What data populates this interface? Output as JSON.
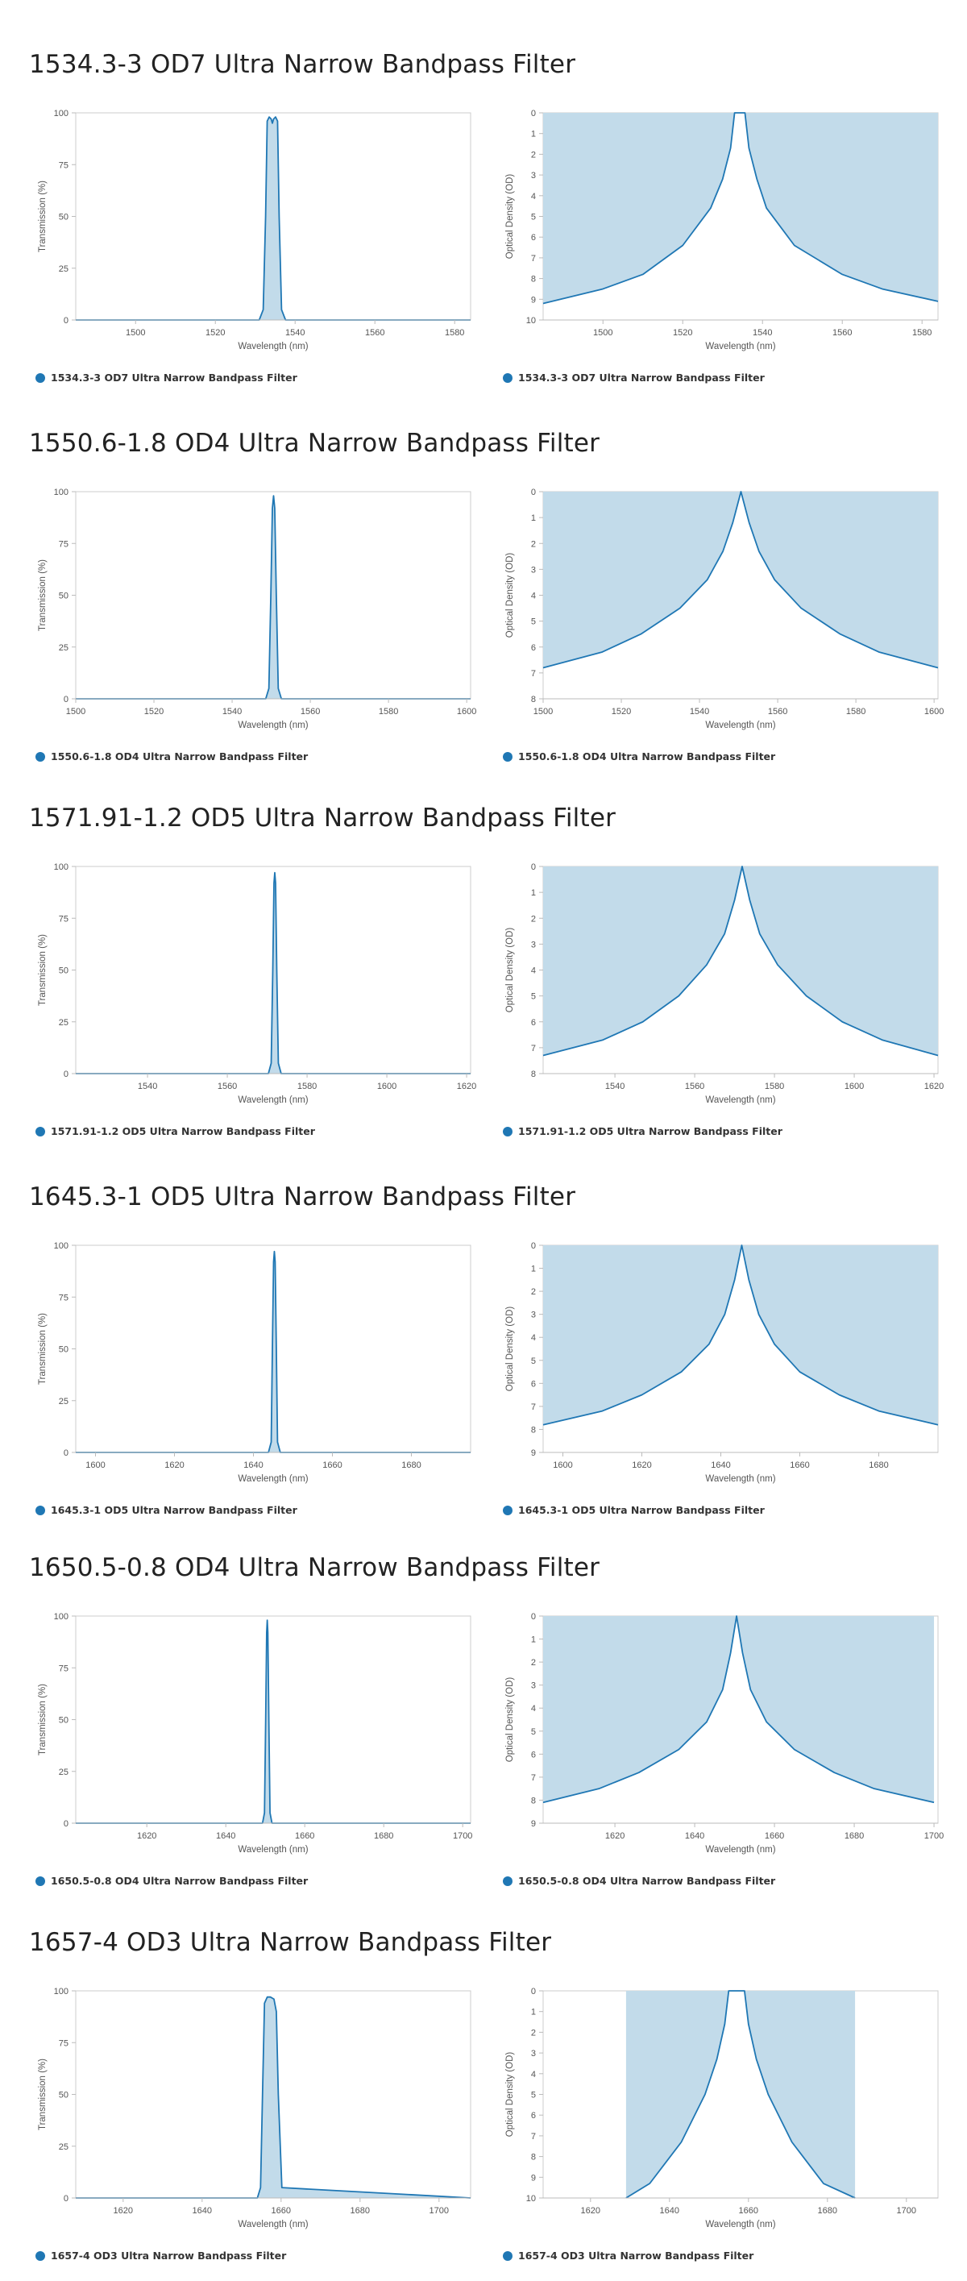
{
  "colors": {
    "line": "#1f77b4",
    "fill": "#c2dbea",
    "axis": "#cccccc",
    "text": "#555555"
  },
  "sections": [
    {
      "title": "1534.3-3 OD7 Ultra Narrow Bandpass Filter",
      "chart_data": [
        {
          "type": "area",
          "title": "",
          "legend": "1534.3-3 OD7 Ultra Narrow Bandpass Filter",
          "xlabel": "Wavelength (nm)",
          "ylabel": "Transmission (%)",
          "xlim": [
            1485,
            1584
          ],
          "ylim": [
            0,
            100
          ],
          "xticks": [
            1500,
            1520,
            1540,
            1560,
            1580
          ],
          "yticks": [
            0,
            25,
            50,
            75,
            100
          ],
          "x": [
            1485,
            1531,
            1532,
            1532.6,
            1533,
            1533.5,
            1534,
            1534.3,
            1534.6,
            1535.1,
            1535.6,
            1536,
            1536.6,
            1537.6,
            1584
          ],
          "y": [
            0,
            0,
            5,
            50,
            96,
            98,
            97,
            95,
            97,
            98,
            96,
            50,
            5,
            0,
            0
          ]
        },
        {
          "type": "area",
          "title": "",
          "legend": "1534.3-3 OD7 Ultra Narrow Bandpass Filter",
          "xlabel": "Wavelength (nm)",
          "ylabel": "Optical Density (OD)",
          "xlim": [
            1485,
            1584
          ],
          "ylim": [
            0,
            10
          ],
          "y_inverted": true,
          "xticks": [
            1500,
            1520,
            1540,
            1560,
            1580
          ],
          "yticks": [
            0,
            1,
            2,
            3,
            4,
            5,
            6,
            7,
            8,
            9,
            10
          ],
          "x": [
            1485,
            1500,
            1510,
            1520,
            1527,
            1530,
            1532,
            1533,
            1535.6,
            1536.6,
            1538.6,
            1541,
            1548,
            1560,
            1570,
            1584
          ],
          "y": [
            9.2,
            8.5,
            7.8,
            6.4,
            4.6,
            3.2,
            1.7,
            0,
            0,
            1.7,
            3.2,
            4.6,
            6.4,
            7.8,
            8.5,
            9.1
          ]
        }
      ]
    },
    {
      "title": "1550.6-1.8 OD4 Ultra Narrow Bandpass Filter",
      "chart_data": [
        {
          "type": "area",
          "title": "",
          "legend": "1550.6-1.8 OD4 Ultra Narrow Bandpass Filter",
          "xlabel": "Wavelength (nm)",
          "ylabel": "Transmission (%)",
          "xlim": [
            1500,
            1601
          ],
          "ylim": [
            0,
            100
          ],
          "xticks": [
            1500,
            1520,
            1540,
            1560,
            1580,
            1600
          ],
          "yticks": [
            0,
            25,
            50,
            75,
            100
          ],
          "x": [
            1500,
            1548.6,
            1549.4,
            1549.9,
            1550.3,
            1550.6,
            1550.9,
            1551.3,
            1551.8,
            1552.6,
            1601
          ],
          "y": [
            0,
            0,
            5,
            50,
            92,
            98,
            92,
            50,
            5,
            0,
            0
          ]
        },
        {
          "type": "area",
          "title": "",
          "legend": "1550.6-1.8 OD4 Ultra Narrow Bandpass Filter",
          "xlabel": "Wavelength (nm)",
          "ylabel": "Optical Density (OD)",
          "xlim": [
            1500,
            1601
          ],
          "ylim": [
            0,
            8
          ],
          "y_inverted": true,
          "xticks": [
            1500,
            1520,
            1540,
            1560,
            1580,
            1600
          ],
          "yticks": [
            0,
            1,
            2,
            3,
            4,
            5,
            6,
            7,
            8
          ],
          "x": [
            1500,
            1515,
            1525,
            1535,
            1542,
            1546,
            1548.5,
            1550.6,
            1552.7,
            1555.2,
            1559.2,
            1566,
            1576,
            1586,
            1601
          ],
          "y": [
            6.8,
            6.2,
            5.5,
            4.5,
            3.4,
            2.3,
            1.2,
            0,
            1.2,
            2.3,
            3.4,
            4.5,
            5.5,
            6.2,
            6.8
          ]
        }
      ]
    },
    {
      "title": "1571.91-1.2 OD5 Ultra Narrow Bandpass Filter",
      "chart_data": [
        {
          "type": "area",
          "title": "",
          "legend": "1571.91-1.2 OD5 Ultra Narrow Bandpass Filter",
          "xlabel": "Wavelength (nm)",
          "ylabel": "Transmission (%)",
          "xlim": [
            1522,
            1621
          ],
          "ylim": [
            0,
            100
          ],
          "xticks": [
            1540,
            1560,
            1580,
            1600,
            1620
          ],
          "yticks": [
            0,
            25,
            50,
            75,
            100
          ],
          "x": [
            1522,
            1570.3,
            1571,
            1571.4,
            1571.7,
            1571.9,
            1572.1,
            1572.4,
            1572.8,
            1573.5,
            1621
          ],
          "y": [
            0,
            0,
            5,
            50,
            92,
            97,
            92,
            50,
            5,
            0,
            0
          ]
        },
        {
          "type": "area",
          "title": "",
          "legend": "1571.91-1.2 OD5 Ultra Narrow Bandpass Filter",
          "xlabel": "Wavelength (nm)",
          "ylabel": "Optical Density (OD)",
          "xlim": [
            1522,
            1621
          ],
          "ylim": [
            0,
            8
          ],
          "y_inverted": true,
          "xticks": [
            1540,
            1560,
            1580,
            1600,
            1620
          ],
          "yticks": [
            0,
            1,
            2,
            3,
            4,
            5,
            6,
            7,
            8
          ],
          "x": [
            1522,
            1537,
            1547,
            1556,
            1563,
            1567.5,
            1570,
            1571.9,
            1573.8,
            1576.3,
            1580.8,
            1588,
            1597,
            1607,
            1621
          ],
          "y": [
            7.3,
            6.7,
            6,
            5,
            3.8,
            2.6,
            1.3,
            0,
            1.3,
            2.6,
            3.8,
            5,
            6,
            6.7,
            7.3
          ]
        }
      ]
    },
    {
      "title": "1645.3-1 OD5 Ultra Narrow Bandpass Filter",
      "chart_data": [
        {
          "type": "area",
          "title": "",
          "legend": "1645.3-1 OD5 Ultra Narrow Bandpass Filter",
          "xlabel": "Wavelength (nm)",
          "ylabel": "Transmission (%)",
          "xlim": [
            1595,
            1695
          ],
          "ylim": [
            0,
            100
          ],
          "xticks": [
            1600,
            1620,
            1640,
            1660,
            1680
          ],
          "yticks": [
            0,
            25,
            50,
            75,
            100
          ],
          "x": [
            1595,
            1643.8,
            1644.5,
            1644.8,
            1645.1,
            1645.3,
            1645.5,
            1645.8,
            1646.1,
            1646.8,
            1695
          ],
          "y": [
            0,
            0,
            5,
            50,
            92,
            97,
            92,
            50,
            5,
            0,
            0
          ]
        },
        {
          "type": "area",
          "title": "",
          "legend": "1645.3-1 OD5 Ultra Narrow Bandpass Filter",
          "xlabel": "Wavelength (nm)",
          "ylabel": "Optical Density (OD)",
          "xlim": [
            1595,
            1695
          ],
          "ylim": [
            0,
            9
          ],
          "y_inverted": true,
          "xticks": [
            1600,
            1620,
            1640,
            1660,
            1680
          ],
          "yticks": [
            0,
            1,
            2,
            3,
            4,
            5,
            6,
            7,
            8,
            9
          ],
          "x": [
            1595,
            1610,
            1620,
            1630,
            1637,
            1641,
            1643.5,
            1645.3,
            1647.1,
            1649.6,
            1653.6,
            1660,
            1670,
            1680,
            1695
          ],
          "y": [
            7.8,
            7.2,
            6.5,
            5.5,
            4.3,
            3,
            1.5,
            0,
            1.5,
            3,
            4.3,
            5.5,
            6.5,
            7.2,
            7.8
          ]
        }
      ]
    },
    {
      "title": "1650.5-0.8 OD4 Ultra Narrow Bandpass Filter",
      "chart_data": [
        {
          "type": "area",
          "title": "",
          "legend": "1650.5-0.8 OD4 Ultra Narrow Bandpass Filter",
          "xlabel": "Wavelength (nm)",
          "ylabel": "Transmission (%)",
          "xlim": [
            1602,
            1702
          ],
          "ylim": [
            0,
            100
          ],
          "xticks": [
            1620,
            1640,
            1660,
            1680,
            1700
          ],
          "yticks": [
            0,
            25,
            50,
            75,
            100
          ],
          "x": [
            1602,
            1649.3,
            1649.8,
            1650.1,
            1650.35,
            1650.5,
            1650.65,
            1650.9,
            1651.2,
            1651.7,
            1702
          ],
          "y": [
            0,
            0,
            5,
            50,
            92,
            98,
            92,
            50,
            5,
            0,
            0
          ]
        },
        {
          "type": "area",
          "title": "",
          "legend": "1650.5-0.8 OD4 Ultra Narrow Bandpass Filter",
          "xlabel": "Wavelength (nm)",
          "ylabel": "Optical Density (OD)",
          "xlim": [
            1602,
            1701
          ],
          "ylim": [
            0,
            9
          ],
          "y_inverted": true,
          "xticks": [
            1620,
            1640,
            1660,
            1680,
            1700
          ],
          "yticks": [
            0,
            1,
            2,
            3,
            4,
            5,
            6,
            7,
            8,
            9
          ],
          "x": [
            1602,
            1616,
            1626,
            1636,
            1643,
            1647,
            1649,
            1650.5,
            1652,
            1654,
            1658,
            1665,
            1675,
            1685,
            1700
          ],
          "y": [
            8.1,
            7.5,
            6.8,
            5.8,
            4.6,
            3.2,
            1.6,
            0,
            1.6,
            3.2,
            4.6,
            5.8,
            6.8,
            7.5,
            8.1
          ]
        }
      ]
    },
    {
      "title": "1657-4 OD3 Ultra Narrow Bandpass Filter",
      "chart_data": [
        {
          "type": "area",
          "title": "",
          "legend": "1657-4 OD3 Ultra Narrow Bandpass Filter",
          "xlabel": "Wavelength (nm)",
          "ylabel": "Transmission (%)",
          "xlim": [
            1608,
            1708
          ],
          "ylim": [
            0,
            100
          ],
          "xticks": [
            1620,
            1640,
            1660,
            1680,
            1700
          ],
          "yticks": [
            0,
            25,
            50,
            75,
            100
          ],
          "x": [
            1608,
            1654,
            1654.8,
            1655.3,
            1655.8,
            1656.5,
            1657.3,
            1658.2,
            1658.8,
            1659.3,
            1660.2,
            1708
          ],
          "y": [
            0,
            0,
            5,
            50,
            94,
            97,
            97,
            96,
            90,
            50,
            5,
            0
          ]
        },
        {
          "type": "area",
          "title": "",
          "legend": "1657-4 OD3 Ultra Narrow Bandpass Filter",
          "xlabel": "Wavelength (nm)",
          "ylabel": "Optical Density (OD)",
          "xlim": [
            1608,
            1708
          ],
          "ylim": [
            0,
            10
          ],
          "y_inverted": true,
          "xticks": [
            1620,
            1640,
            1660,
            1680,
            1700
          ],
          "yticks": [
            0,
            1,
            2,
            3,
            4,
            5,
            6,
            7,
            8,
            9,
            10
          ],
          "x": [
            1629,
            1635,
            1643,
            1649,
            1652,
            1654,
            1655,
            1659,
            1660,
            1662,
            1665,
            1671,
            1679,
            1687
          ],
          "y": [
            10,
            9.3,
            7.3,
            5,
            3.3,
            1.6,
            0,
            0,
            1.6,
            3.3,
            5,
            7.3,
            9.3,
            10
          ]
        }
      ]
    }
  ]
}
